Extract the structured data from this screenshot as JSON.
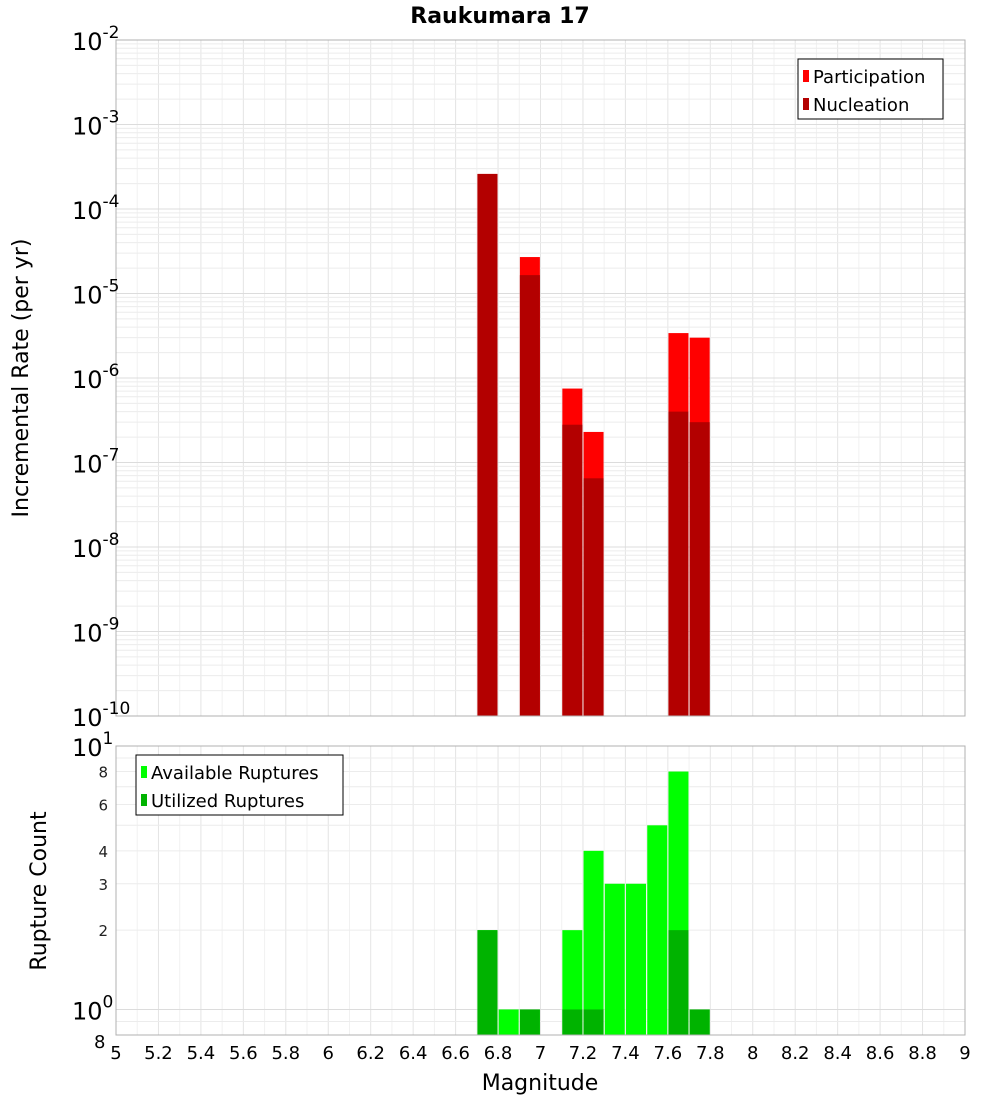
{
  "chart_data": [
    {
      "type": "bar",
      "title": "Raukumara 17",
      "xlabel": "",
      "ylabel": "Incremental Rate (per yr)",
      "yscale": "log",
      "ylim": [
        1e-10,
        0.01
      ],
      "xlim": [
        5,
        9
      ],
      "grid": true,
      "legend_position": "top-right",
      "y_tick_labels": [
        {
          "base": "10",
          "exp": "-2"
        },
        {
          "base": "10",
          "exp": "-3"
        },
        {
          "base": "10",
          "exp": "-4"
        },
        {
          "base": "10",
          "exp": "-5"
        },
        {
          "base": "10",
          "exp": "-6"
        },
        {
          "base": "10",
          "exp": "-7"
        },
        {
          "base": "10",
          "exp": "-8"
        },
        {
          "base": "10",
          "exp": "-9"
        },
        {
          "base": "10",
          "exp": "-10"
        }
      ],
      "colors": {
        "Participation": "#ff0000",
        "Nucleation": "#b30000"
      },
      "x": [
        6.75,
        6.95,
        7.15,
        7.25,
        7.65,
        7.75
      ],
      "series": [
        {
          "name": "Participation",
          "values": [
            0.00026,
            2.7e-05,
            7.5e-07,
            2.3e-07,
            3.4e-06,
            3e-06
          ]
        },
        {
          "name": "Nucleation",
          "values": [
            0.00026,
            1.65e-05,
            2.8e-07,
            6.5e-08,
            4e-07,
            3e-07
          ]
        }
      ]
    },
    {
      "type": "bar",
      "title": "",
      "xlabel": "Magnitude",
      "ylabel": "Rupture Count",
      "yscale": "log",
      "ylim": [
        0.8,
        10
      ],
      "xlim": [
        5,
        9
      ],
      "grid": true,
      "legend_position": "top-left",
      "x_ticks": [
        "5",
        "5.2",
        "5.4",
        "5.6",
        "5.8",
        "6",
        "6.2",
        "6.4",
        "6.6",
        "6.8",
        "7",
        "7.2",
        "7.4",
        "7.6",
        "7.8",
        "8",
        "8.2",
        "8.4",
        "8.6",
        "8.8",
        "9"
      ],
      "y_ticks": [
        {
          "value": 2,
          "label": "2"
        },
        {
          "value": 3,
          "label": "3"
        },
        {
          "value": 4,
          "label": "4"
        },
        {
          "value": 6,
          "label": "6"
        },
        {
          "value": 8,
          "label": "8"
        }
      ],
      "y_major_labels": [
        {
          "value": 10,
          "base": "10",
          "exp": "1"
        },
        {
          "value": 1,
          "base": "10",
          "exp": "0"
        }
      ],
      "y_bottom_label": "8",
      "colors": {
        "Available Ruptures": "#00ff00",
        "Utilized Ruptures": "#00b300"
      },
      "x": [
        6.75,
        6.85,
        6.95,
        7.15,
        7.25,
        7.35,
        7.45,
        7.55,
        7.65,
        7.75
      ],
      "series": [
        {
          "name": "Available Ruptures",
          "values": [
            2,
            1,
            1,
            2,
            4,
            3,
            3,
            5,
            8,
            1
          ]
        },
        {
          "name": "Utilized Ruptures",
          "values": [
            2,
            0,
            1,
            1,
            1,
            0,
            0,
            0,
            2,
            1
          ]
        }
      ]
    }
  ]
}
